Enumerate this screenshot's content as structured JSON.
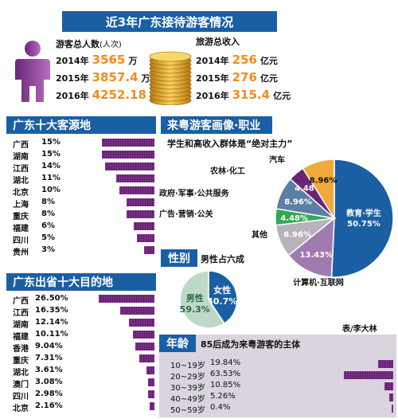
{
  "title": "近3年广东接待游客情况",
  "visitors": {
    "label": "游客总人数",
    "label_unit": "(人次)",
    "rows": [
      {
        "year": "2014年",
        "value": "3565",
        "unit": "万"
      },
      {
        "year": "2015年",
        "value": "3857.4",
        "unit": "万"
      },
      {
        "year": "2016年",
        "value": "4252.18",
        "unit": "万"
      }
    ]
  },
  "income": {
    "label": "旅游总收入",
    "rows": [
      {
        "year": "2014年",
        "value": "256",
        "unit": "亿元"
      },
      {
        "year": "2015年",
        "value": "276",
        "unit": "亿元"
      },
      {
        "year": "2016年",
        "value": "315.4",
        "unit": "亿元"
      }
    ]
  },
  "source_title": "广东十大客源地",
  "dest_title": "广东出省十大目的地",
  "portrait_title": "来粤游客画像·职业",
  "portrait_subtitle": "学生和高收入群体是“绝对主力”",
  "gender_title": "性别",
  "gender_subtitle": "男性占六成",
  "age_title": "年龄",
  "age_subtitle": "85后成为来粤游客的主体",
  "credit": "表/李大林",
  "colors": {
    "header_blue": "#1a5fa4",
    "bar_purple": "#6b2577",
    "accent_orange": "#f28c1b",
    "age_bg": "#d9d4de"
  },
  "chart_data": [
    {
      "type": "bar",
      "orientation": "horizontal",
      "title": "广东十大客源地",
      "categories": [
        "广西",
        "湖南",
        "江西",
        "湖北",
        "北京",
        "上海",
        "重庆",
        "福建",
        "四川",
        "贵州"
      ],
      "values": [
        15,
        15,
        14,
        11,
        10,
        8,
        8,
        6,
        5,
        3
      ],
      "labels": [
        "15%",
        "15%",
        "14%",
        "11%",
        "10%",
        "8%",
        "8%",
        "6%",
        "5%",
        "3%"
      ],
      "unit": "%"
    },
    {
      "type": "bar",
      "orientation": "horizontal",
      "title": "广东出省十大目的地",
      "categories": [
        "广西",
        "江西",
        "湖南",
        "福建",
        "香港",
        "重庆",
        "湖北",
        "澳门",
        "四川",
        "北京"
      ],
      "values": [
        26.5,
        16.35,
        12.14,
        10.11,
        9.04,
        7.31,
        3.61,
        3.08,
        2.98,
        2.16
      ],
      "labels": [
        "26.50%",
        "16.35%",
        "12.14%",
        "10.11%",
        "9.04%",
        "7.31%",
        "3.61%",
        "3.08%",
        "2.98%",
        "2.16%"
      ],
      "unit": "%"
    },
    {
      "type": "pie",
      "title": "来粤游客画像·职业",
      "slices": [
        {
          "name": "教育·学生",
          "value": 50.75,
          "label": "50.75%",
          "color": "#1a5fa4"
        },
        {
          "name": "计算机·互联网",
          "value": 13.43,
          "label": "13.43%",
          "color": "#a07bb0"
        },
        {
          "name": "其他",
          "value": 8.96,
          "label": "8.96%",
          "color": "#b7b2bb"
        },
        {
          "name": "广告·营销·公关",
          "value": 4.48,
          "label": "4.48%",
          "color": "#33a852"
        },
        {
          "name": "政府·军事·公共服务",
          "value": 8.96,
          "label": "8.96%",
          "color": "#5c7fa6"
        },
        {
          "name": "农林·化工",
          "value": 4.48,
          "label": "4.48%",
          "color": "#6b2577"
        },
        {
          "name": "汽车",
          "value": 8.96,
          "label": "8.96%",
          "color": "#f2a93b"
        }
      ]
    },
    {
      "type": "pie",
      "title": "性别",
      "slices": [
        {
          "name": "男性",
          "value": 59.3,
          "label": "59.3%",
          "color": "#bfd9c9"
        },
        {
          "name": "女性",
          "value": 40.7,
          "label": "40.7%",
          "color": "#1a5fa4"
        }
      ]
    },
    {
      "type": "bar",
      "orientation": "horizontal",
      "title": "年龄",
      "categories": [
        "10~19岁",
        "20~29岁",
        "30~39岁",
        "40~49岁",
        "50~59岁"
      ],
      "values": [
        19.84,
        63.53,
        10.85,
        5.26,
        0.4
      ],
      "labels": [
        "19.84%",
        "63.53%",
        "10.85%",
        "5.26%",
        "0.4%"
      ],
      "unit": "%"
    }
  ]
}
